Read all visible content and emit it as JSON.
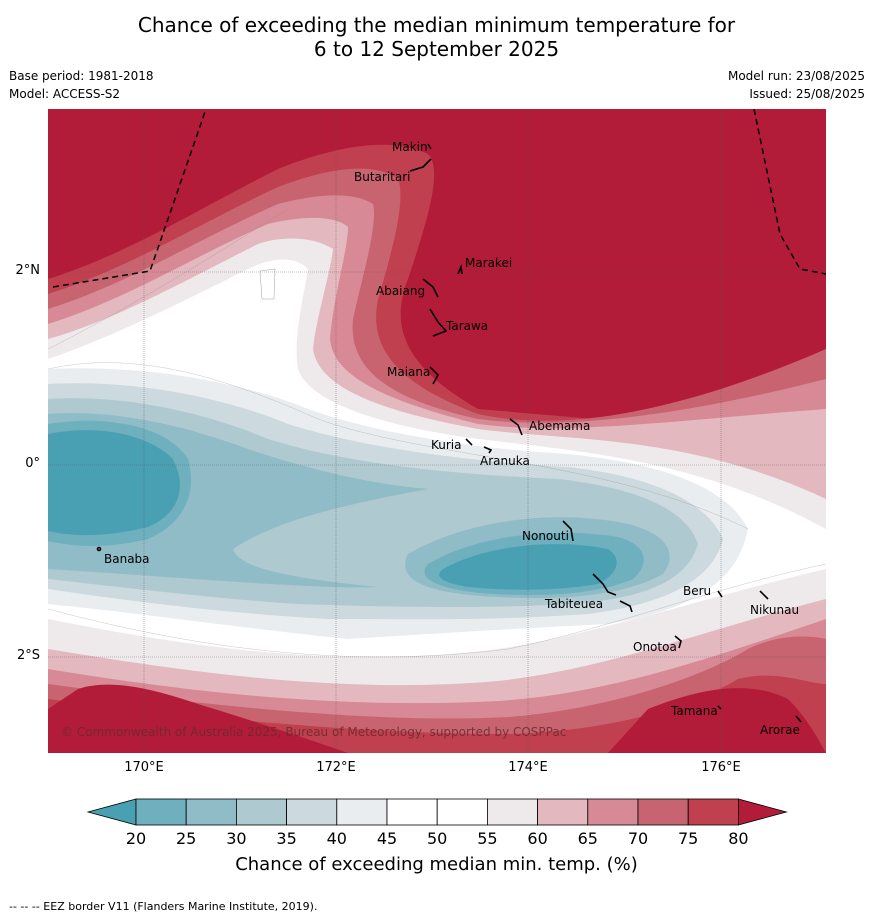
{
  "title_line1": "Chance of exceeding the median minimum temperature for",
  "title_line2": "6 to 12 September 2025",
  "base_period": "Base period: 1981-2018",
  "model": "Model: ACCESS-S2",
  "model_run": "Model run: 23/08/2025",
  "issued": "Issued: 25/08/2025",
  "lat_labels": [
    "2°N",
    "0°",
    "2°S"
  ],
  "lon_labels": [
    "170°E",
    "172°E",
    "174°E",
    "176°E"
  ],
  "islands": [
    "Makin",
    "Butaritari",
    "Marakei",
    "Abaiang",
    "Tarawa",
    "Maiana",
    "Abemama",
    "Kuria",
    "Aranuka",
    "Nonouti",
    "Banaba",
    "Tabiteuea",
    "Beru",
    "Nikunau",
    "Onotoa",
    "Tamana",
    "Arorae"
  ],
  "copyright": "© Commonwealth of Australia 2025, Bureau of Meteorology, supported by COSPPac",
  "colorbar": {
    "ticks": [
      "20",
      "25",
      "30",
      "35",
      "40",
      "45",
      "50",
      "55",
      "60",
      "65",
      "70",
      "75",
      "80"
    ],
    "colors": [
      "#4aa0b3",
      "#6fb0bf",
      "#8fbcc7",
      "#aec9d0",
      "#ccd9de",
      "#e9edf0",
      "#ffffff",
      "#ffffff",
      "#eeeaec",
      "#e3b8bf",
      "#d78a95",
      "#c86470",
      "#c0404f",
      "#b21c38"
    ],
    "label": "Chance of exceeding median min. temp. (%)"
  },
  "footnote": "--  --  -- EEZ border V11 (Flanders Marine Institute, 2019)."
}
